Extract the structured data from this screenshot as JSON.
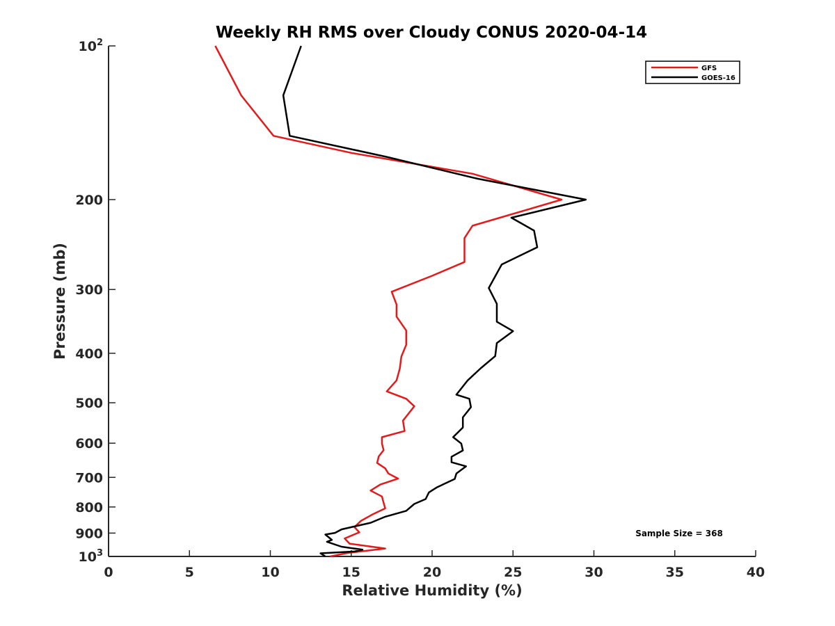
{
  "chart_data": {
    "type": "line",
    "title": "Weekly RH RMS over Cloudy CONUS 2020-04-14",
    "xlabel": "Relative Humidity (%)",
    "ylabel": "Pressure (mb)",
    "xlim": [
      0,
      40
    ],
    "ylim": [
      100,
      1000
    ],
    "y_scale": "log",
    "y_reversed": true,
    "grid": false,
    "legend_position": "top-right",
    "x_ticks": [
      0,
      5,
      10,
      15,
      20,
      25,
      30,
      35,
      40
    ],
    "y_ticks": [
      {
        "value": 100,
        "base": "10",
        "exp": "2"
      },
      {
        "value": 200,
        "label": "200"
      },
      {
        "value": 300,
        "label": "300"
      },
      {
        "value": 400,
        "label": "400"
      },
      {
        "value": 500,
        "label": "500"
      },
      {
        "value": 600,
        "label": "600"
      },
      {
        "value": 700,
        "label": "700"
      },
      {
        "value": 800,
        "label": "800"
      },
      {
        "value": 900,
        "label": "900"
      },
      {
        "value": 1000,
        "base": "10",
        "exp": "3"
      }
    ],
    "annotation": "Sample Size = 368",
    "series": [
      {
        "name": "GFS",
        "color": "#e41a1a",
        "points": [
          [
            6.6,
            100
          ],
          [
            8.2,
            125
          ],
          [
            10.2,
            150
          ],
          [
            15.0,
            162
          ],
          [
            22.5,
            178
          ],
          [
            28.0,
            200
          ],
          [
            22.5,
            225
          ],
          [
            22.0,
            238
          ],
          [
            22.0,
            265
          ],
          [
            20.0,
            282
          ],
          [
            17.5,
            303
          ],
          [
            17.8,
            321
          ],
          [
            17.8,
            339
          ],
          [
            18.4,
            361
          ],
          [
            18.4,
            385
          ],
          [
            18.1,
            406
          ],
          [
            18.0,
            429
          ],
          [
            17.8,
            452
          ],
          [
            17.2,
            475
          ],
          [
            18.4,
            491
          ],
          [
            18.9,
            508
          ],
          [
            18.2,
            542
          ],
          [
            18.3,
            568
          ],
          [
            16.9,
            584
          ],
          [
            16.9,
            601
          ],
          [
            17.0,
            619
          ],
          [
            16.7,
            637
          ],
          [
            16.6,
            656
          ],
          [
            17.1,
            672
          ],
          [
            17.3,
            688
          ],
          [
            17.9,
            704
          ],
          [
            16.8,
            723
          ],
          [
            16.2,
            743
          ],
          [
            16.9,
            763
          ],
          [
            17.0,
            785
          ],
          [
            17.1,
            805
          ],
          [
            16.3,
            828
          ],
          [
            15.6,
            852
          ],
          [
            15.2,
            876
          ],
          [
            15.5,
            897
          ],
          [
            14.6,
            922
          ],
          [
            14.9,
            944
          ],
          [
            17.1,
            965
          ],
          [
            14.8,
            984
          ],
          [
            13.7,
            1000
          ]
        ]
      },
      {
        "name": "GOES-16",
        "color": "#000000",
        "points": [
          [
            11.9,
            100
          ],
          [
            10.8,
            125
          ],
          [
            11.2,
            150
          ],
          [
            17.2,
            165
          ],
          [
            22.8,
            182
          ],
          [
            29.5,
            200
          ],
          [
            24.9,
            217
          ],
          [
            26.3,
            230
          ],
          [
            26.5,
            248
          ],
          [
            24.3,
            268
          ],
          [
            23.5,
            298
          ],
          [
            24.0,
            320
          ],
          [
            24.0,
            347
          ],
          [
            25.0,
            362
          ],
          [
            24.0,
            382
          ],
          [
            23.9,
            405
          ],
          [
            23.0,
            428
          ],
          [
            22.2,
            452
          ],
          [
            21.5,
            482
          ],
          [
            22.3,
            491
          ],
          [
            22.4,
            510
          ],
          [
            21.9,
            534
          ],
          [
            21.9,
            559
          ],
          [
            21.3,
            584
          ],
          [
            21.8,
            601
          ],
          [
            21.9,
            620
          ],
          [
            21.2,
            638
          ],
          [
            21.2,
            654
          ],
          [
            22.1,
            666
          ],
          [
            21.5,
            688
          ],
          [
            21.4,
            705
          ],
          [
            20.3,
            732
          ],
          [
            19.8,
            749
          ],
          [
            19.6,
            772
          ],
          [
            18.9,
            789
          ],
          [
            18.4,
            814
          ],
          [
            17.1,
            836
          ],
          [
            16.2,
            859
          ],
          [
            14.4,
            885
          ],
          [
            14.0,
            899
          ],
          [
            13.4,
            906
          ],
          [
            13.8,
            928
          ],
          [
            13.5,
            936
          ],
          [
            14.4,
            957
          ],
          [
            15.7,
            970
          ],
          [
            15.2,
            978
          ],
          [
            13.1,
            986
          ],
          [
            13.4,
            1000
          ]
        ]
      }
    ]
  }
}
